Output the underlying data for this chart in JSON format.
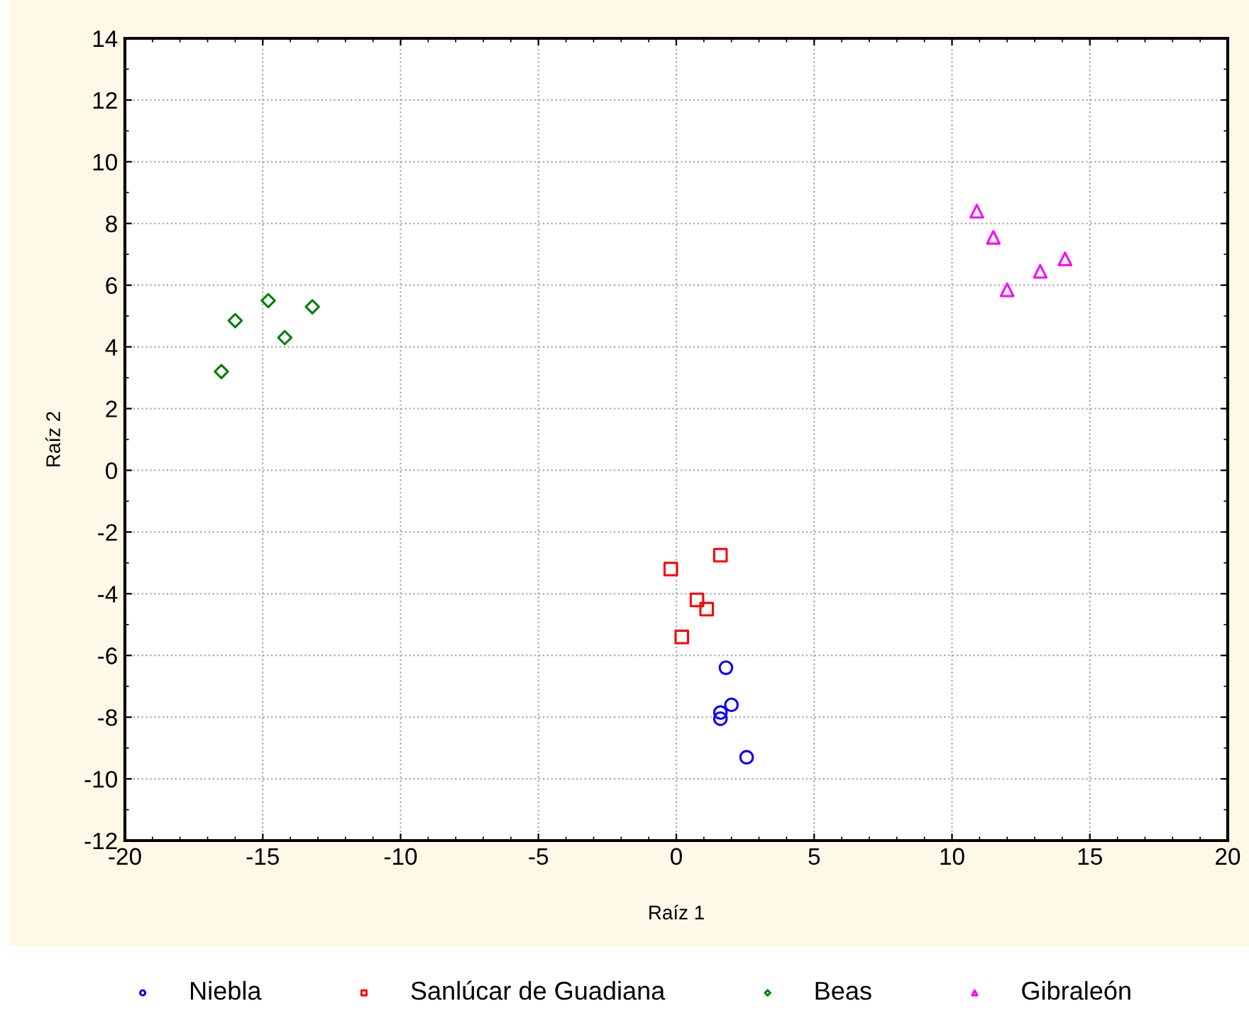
{
  "chart_data": {
    "type": "scatter",
    "xlabel": "Raíz 1",
    "ylabel": "Raíz 2",
    "xlim": [
      -20,
      20
    ],
    "ylim": [
      -12,
      14
    ],
    "xticks": [
      -20,
      -15,
      -10,
      -5,
      0,
      5,
      10,
      15,
      20
    ],
    "yticks": [
      -12,
      -10,
      -8,
      -6,
      -4,
      -2,
      0,
      2,
      4,
      6,
      8,
      10,
      12,
      14
    ],
    "grid": true,
    "legend": "bottom",
    "series": [
      {
        "name": "Niebla",
        "color": "#0000ff",
        "marker": "circle",
        "x": [
          1.8,
          2.0,
          1.6,
          1.6,
          2.55
        ],
        "values": [
          -6.4,
          -7.6,
          -7.85,
          -8.05,
          -9.3
        ]
      },
      {
        "name": "Sanlúcar de Guadiana",
        "color": "#ff0000",
        "marker": "square",
        "x": [
          -0.2,
          1.6,
          0.75,
          1.1,
          0.2
        ],
        "values": [
          -3.2,
          -2.75,
          -4.2,
          -4.5,
          -5.4
        ]
      },
      {
        "name": "Beas",
        "color": "#008000",
        "marker": "diamond",
        "x": [
          -16.5,
          -16.0,
          -14.8,
          -14.2,
          -13.2
        ],
        "values": [
          3.2,
          4.85,
          5.5,
          4.3,
          5.3
        ]
      },
      {
        "name": "Gibraleón",
        "color": "#ff00ff",
        "marker": "triangle",
        "x": [
          10.9,
          11.5,
          12.0,
          13.2,
          14.1
        ],
        "values": [
          8.4,
          7.55,
          5.85,
          6.45,
          6.85
        ]
      }
    ]
  }
}
